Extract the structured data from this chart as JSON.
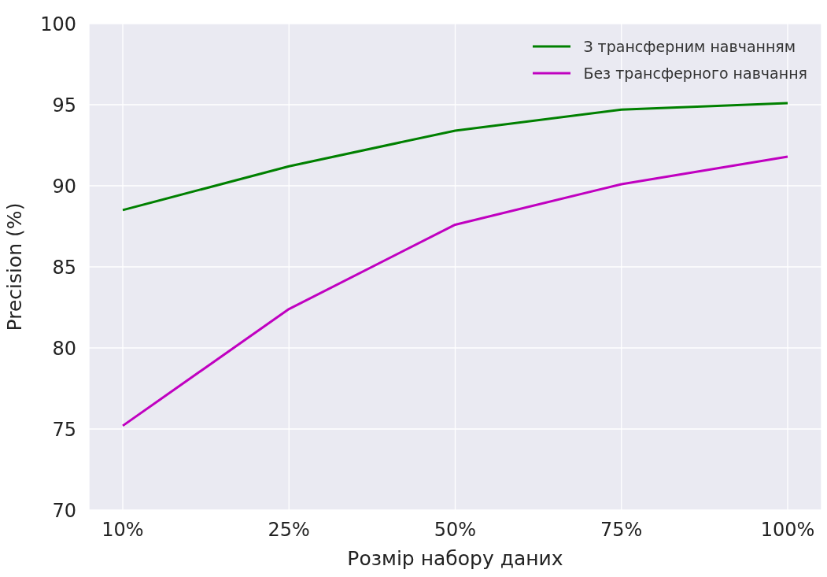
{
  "chart_data": {
    "type": "line",
    "xlabel": "Розмір набору даних",
    "ylabel": "Precision (%)",
    "categories": [
      "10%",
      "25%",
      "50%",
      "75%",
      "100%"
    ],
    "series": [
      {
        "name": "З трансферним навчанням",
        "color": "#008000",
        "values": [
          88.5,
          91.2,
          93.4,
          94.7,
          95.1
        ]
      },
      {
        "name": "Без трансферного навчання",
        "color": "#c000c0",
        "values": [
          75.2,
          82.4,
          87.6,
          90.1,
          91.8
        ]
      }
    ],
    "ylim": [
      70,
      100
    ],
    "yticks": [
      70,
      75,
      80,
      85,
      90,
      95,
      100
    ],
    "grid": true,
    "legend": "top right",
    "line_style": "solid",
    "marker": "none"
  }
}
